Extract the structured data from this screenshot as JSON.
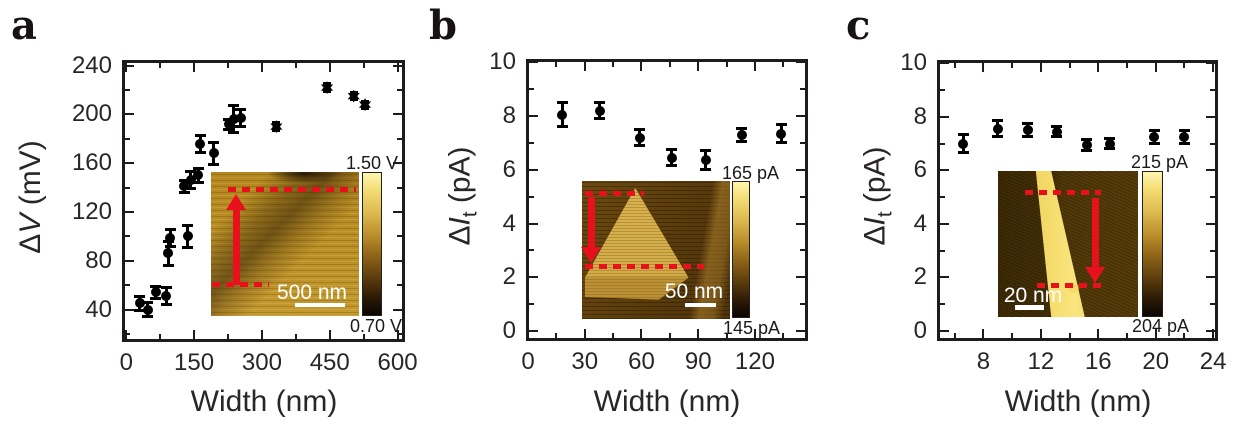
{
  "figure": {
    "kind": "three-panel scientific scatter figure with AFM/STM image insets",
    "background": "#ffffff",
    "text_color": "#2a2526",
    "accent_red": "#e8111b",
    "marker_color": "#000000"
  },
  "chart_data": [
    {
      "type": "scatter",
      "panel_label": "a",
      "title": "",
      "xlabel": "Width (nm)",
      "ylabel": "ΔV (mV)",
      "ylabel_rich": {
        "prefix": "Δ",
        "variable": "V",
        "subscript": "",
        "unit": "(mV)"
      },
      "xlim": [
        -5,
        612
      ],
      "ylim": [
        15,
        243
      ],
      "x_major_ticks": [
        0,
        150,
        300,
        450,
        600
      ],
      "x_minor_ticks": [
        75,
        225,
        375,
        525
      ],
      "y_major_ticks": [
        40,
        80,
        120,
        160,
        200,
        240
      ],
      "y_minor_ticks": [
        20,
        60,
        100,
        140,
        180,
        220
      ],
      "grid": false,
      "legend": null,
      "points": [
        {
          "x": 30,
          "y": 45,
          "err": 6,
          "marker": "circle"
        },
        {
          "x": 47,
          "y": 40,
          "err": 6,
          "marker": "circle"
        },
        {
          "x": 65,
          "y": 54,
          "err": 5,
          "marker": "circle"
        },
        {
          "x": 88,
          "y": 51,
          "err": 7,
          "marker": "circle"
        },
        {
          "x": 93,
          "y": 86,
          "err": 10,
          "marker": "circle"
        },
        {
          "x": 97,
          "y": 99,
          "err": 7,
          "marker": "circle"
        },
        {
          "x": 136,
          "y": 100,
          "err": 9,
          "marker": "circle"
        },
        {
          "x": 128,
          "y": 141,
          "err": 5,
          "marker": "circle"
        },
        {
          "x": 143,
          "y": 146,
          "err": 7,
          "marker": "circle"
        },
        {
          "x": 159,
          "y": 150,
          "err": 6,
          "marker": "circle"
        },
        {
          "x": 164,
          "y": 176,
          "err": 7,
          "marker": "circle"
        },
        {
          "x": 194,
          "y": 168,
          "err": 9,
          "marker": "circle"
        },
        {
          "x": 227,
          "y": 192,
          "err": 4,
          "marker": "circle"
        },
        {
          "x": 238,
          "y": 196,
          "err": 11,
          "marker": "circle"
        },
        {
          "x": 253,
          "y": 197,
          "err": 7,
          "marker": "circle"
        },
        {
          "x": 332,
          "y": 190,
          "err": 3,
          "marker": "star"
        },
        {
          "x": 444,
          "y": 222,
          "err": 3,
          "marker": "star"
        },
        {
          "x": 503,
          "y": 215,
          "err": 3,
          "marker": "star"
        },
        {
          "x": 528,
          "y": 208,
          "err": 3,
          "marker": "star"
        }
      ],
      "inset": {
        "kind": "AFM topography image",
        "scale_bar_label": "500 nm",
        "colorbar_top_label": "1.50 V",
        "colorbar_bottom_label": "0.70 V",
        "arrow_direction": "up"
      }
    },
    {
      "type": "scatter",
      "panel_label": "b",
      "title": "",
      "xlabel": "Width (nm)",
      "ylabel": "ΔIt (pA)",
      "ylabel_rich": {
        "prefix": "Δ",
        "variable": "I",
        "subscript": "t",
        "unit": "(pA)"
      },
      "xlim": [
        0,
        147
      ],
      "ylim": [
        -0.3,
        10.05
      ],
      "x_major_ticks": [
        0,
        30,
        60,
        90,
        120
      ],
      "x_minor_ticks": [
        15,
        45,
        75,
        105,
        135
      ],
      "y_major_ticks": [
        0,
        2,
        4,
        6,
        8,
        10
      ],
      "y_minor_ticks": [
        1,
        3,
        5,
        7,
        9
      ],
      "grid": false,
      "legend": null,
      "points": [
        {
          "x": 18,
          "y": 8.05,
          "err": 0.45,
          "marker": "circle"
        },
        {
          "x": 38,
          "y": 8.2,
          "err": 0.3,
          "marker": "circle"
        },
        {
          "x": 59,
          "y": 7.2,
          "err": 0.3,
          "marker": "circle"
        },
        {
          "x": 76,
          "y": 6.45,
          "err": 0.3,
          "marker": "circle"
        },
        {
          "x": 94,
          "y": 6.35,
          "err": 0.35,
          "marker": "circle"
        },
        {
          "x": 113,
          "y": 7.3,
          "err": 0.25,
          "marker": "circle"
        },
        {
          "x": 134,
          "y": 7.35,
          "err": 0.35,
          "marker": "circle"
        }
      ],
      "inset": {
        "kind": "STM current image with triangular island",
        "scale_bar_label": "50 nm",
        "colorbar_top_label": "165 pA",
        "colorbar_bottom_label": "145 pA",
        "arrow_direction": "down"
      }
    },
    {
      "type": "scatter",
      "panel_label": "c",
      "title": "",
      "xlabel": "Width (nm)",
      "ylabel": "ΔIt (pA)",
      "ylabel_rich": {
        "prefix": "Δ",
        "variable": "I",
        "subscript": "t",
        "unit": "(pA)"
      },
      "xlim": [
        4.9,
        24.2
      ],
      "ylim": [
        -0.3,
        10.05
      ],
      "x_major_ticks": [
        8,
        12,
        16,
        20,
        24
      ],
      "x_minor_ticks": [
        6,
        10,
        14,
        18,
        22
      ],
      "y_major_ticks": [
        0,
        2,
        4,
        6,
        8,
        10
      ],
      "y_minor_ticks": [
        1,
        3,
        5,
        7,
        9
      ],
      "grid": false,
      "legend": null,
      "points": [
        {
          "x": 6.6,
          "y": 7.0,
          "err": 0.35,
          "marker": "circle"
        },
        {
          "x": 9.0,
          "y": 7.55,
          "err": 0.3,
          "marker": "circle"
        },
        {
          "x": 11.1,
          "y": 7.5,
          "err": 0.25,
          "marker": "circle"
        },
        {
          "x": 13.1,
          "y": 7.45,
          "err": 0.2,
          "marker": "circle"
        },
        {
          "x": 15.2,
          "y": 6.95,
          "err": 0.2,
          "marker": "circle"
        },
        {
          "x": 16.8,
          "y": 7.0,
          "err": 0.2,
          "marker": "circle"
        },
        {
          "x": 19.9,
          "y": 7.25,
          "err": 0.25,
          "marker": "circle"
        },
        {
          "x": 22.0,
          "y": 7.25,
          "err": 0.25,
          "marker": "circle"
        }
      ],
      "inset": {
        "kind": "STM current image with bright diagonal stripe",
        "scale_bar_label": "20 nm",
        "colorbar_top_label": "215 pA",
        "colorbar_bottom_label": "204 pA",
        "arrow_direction": "down"
      }
    }
  ]
}
